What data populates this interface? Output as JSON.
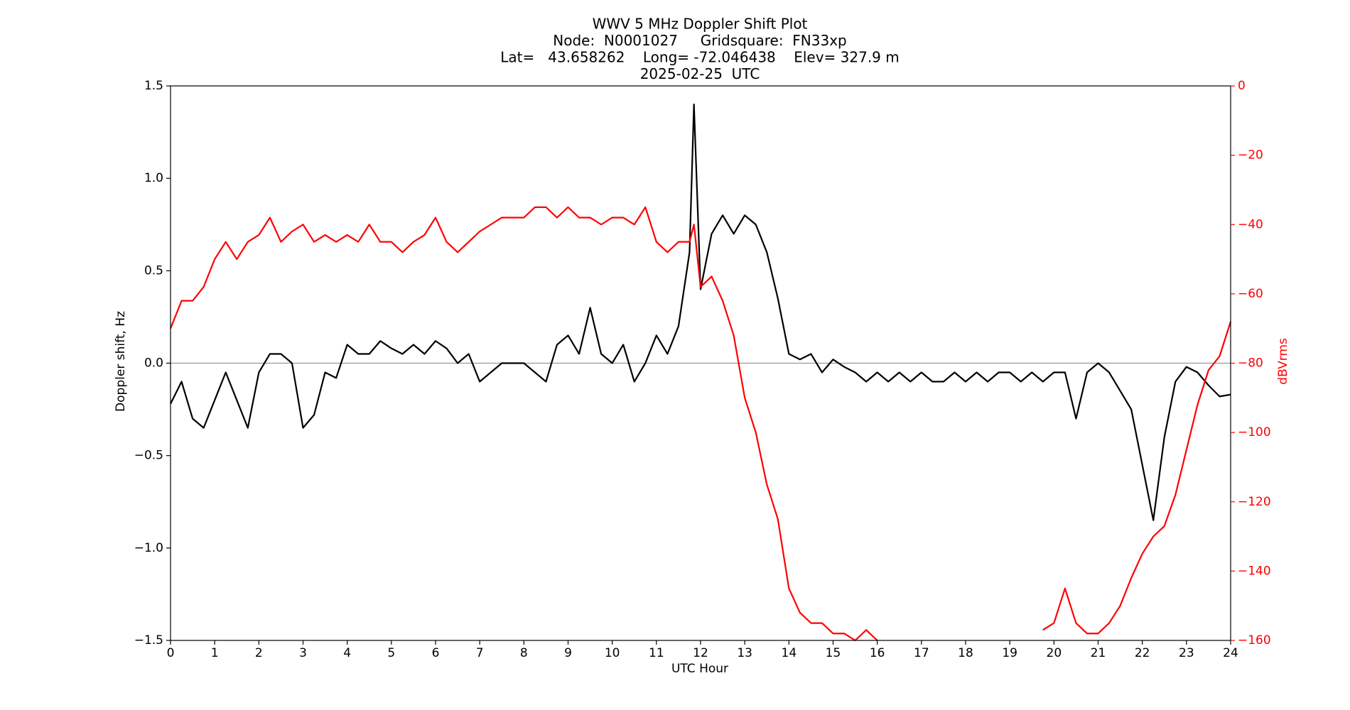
{
  "chart_data": {
    "type": "line",
    "title_lines": [
      "WWV 5 MHz Doppler Shift Plot",
      "Node:  N0001027     Gridsquare:  FN33xp",
      "Lat=   43.658262    Long= -72.046438    Elev= 327.9 m",
      "2025-02-25  UTC"
    ],
    "xlabel": "UTC Hour",
    "ylabel": "Doppler shift, Hz",
    "y2label": "dBVrms",
    "y2color": "#ff0000",
    "x": [
      0,
      0.25,
      0.5,
      0.75,
      1,
      1.25,
      1.5,
      1.75,
      2,
      2.25,
      2.5,
      2.75,
      3,
      3.25,
      3.5,
      3.75,
      4,
      4.25,
      4.5,
      4.75,
      5,
      5.25,
      5.5,
      5.75,
      6,
      6.25,
      6.5,
      6.75,
      7,
      7.25,
      7.5,
      7.75,
      8,
      8.25,
      8.5,
      8.75,
      9,
      9.25,
      9.5,
      9.75,
      10,
      10.25,
      10.5,
      10.75,
      11,
      11.25,
      11.5,
      11.75,
      11.85,
      12,
      12.25,
      12.5,
      12.75,
      13,
      13.25,
      13.5,
      13.75,
      14,
      14.25,
      14.5,
      14.75,
      15,
      15.25,
      15.5,
      15.75,
      16,
      16.25,
      16.5,
      16.75,
      17,
      17.25,
      17.5,
      17.75,
      18,
      18.25,
      18.5,
      18.75,
      19,
      19.25,
      19.5,
      19.75,
      20,
      20.25,
      20.5,
      20.75,
      21,
      21.25,
      21.5,
      21.75,
      22,
      22.25,
      22.5,
      22.75,
      23,
      23.25,
      23.5,
      23.75,
      24
    ],
    "series": [
      {
        "name": "Doppler shift",
        "color": "#000000",
        "axis": "y",
        "values": [
          -0.22,
          -0.1,
          -0.3,
          -0.35,
          -0.2,
          -0.05,
          -0.2,
          -0.35,
          -0.05,
          0.05,
          0.05,
          0.0,
          -0.35,
          -0.28,
          -0.05,
          -0.08,
          0.1,
          0.05,
          0.05,
          0.12,
          0.08,
          0.05,
          0.1,
          0.05,
          0.12,
          0.08,
          0.0,
          0.05,
          -0.1,
          -0.05,
          0.0,
          0.0,
          0.0,
          -0.05,
          -0.1,
          0.1,
          0.15,
          0.05,
          0.3,
          0.05,
          0.0,
          0.1,
          -0.1,
          0.0,
          0.15,
          0.05,
          0.2,
          0.6,
          1.4,
          0.4,
          0.7,
          0.8,
          0.7,
          0.8,
          0.75,
          0.6,
          0.35,
          0.05,
          0.02,
          0.05,
          -0.05,
          0.02,
          -0.02,
          -0.05,
          -0.1,
          -0.05,
          -0.1,
          -0.05,
          -0.1,
          -0.05,
          -0.1,
          -0.1,
          -0.05,
          -0.1,
          -0.05,
          -0.1,
          -0.05,
          -0.05,
          -0.1,
          -0.05,
          -0.1,
          -0.05,
          -0.05,
          -0.3,
          -0.05,
          0.0,
          -0.05,
          -0.15,
          -0.25,
          -0.55,
          -0.85,
          -0.4,
          -0.1,
          -0.02,
          -0.05,
          -0.12,
          -0.18,
          -0.17
        ]
      },
      {
        "name": "dBVrms",
        "color": "#ff0000",
        "axis": "y2",
        "values": [
          -70,
          -62,
          -62,
          -58,
          -50,
          -45,
          -50,
          -45,
          -43,
          -38,
          -45,
          -42,
          -40,
          -45,
          -43,
          -45,
          -43,
          -45,
          -40,
          -45,
          -45,
          -48,
          -45,
          -43,
          -38,
          -45,
          -48,
          -45,
          -42,
          -40,
          -38,
          -38,
          -38,
          -35,
          -35,
          -38,
          -35,
          -38,
          -38,
          -40,
          -38,
          -38,
          -40,
          -35,
          -45,
          -48,
          -45,
          -45,
          -40,
          -58,
          -55,
          -62,
          -72,
          -90,
          -100,
          -115,
          -125,
          -145,
          -152,
          -155,
          -155,
          -158,
          -158,
          -160,
          -157,
          -160,
          null,
          null,
          null,
          null,
          null,
          null,
          null,
          null,
          null,
          null,
          null,
          null,
          null,
          null,
          -157,
          -155,
          -145,
          -155,
          -158,
          -158,
          -155,
          -150,
          -142,
          -135,
          -130,
          -127,
          -118,
          -105,
          -92,
          -82,
          -78,
          -68
        ]
      }
    ],
    "xlim": [
      0,
      24
    ],
    "xticks": [
      0,
      1,
      2,
      3,
      4,
      5,
      6,
      7,
      8,
      9,
      10,
      11,
      12,
      13,
      14,
      15,
      16,
      17,
      18,
      19,
      20,
      21,
      22,
      23,
      24
    ],
    "ylim": [
      -1.5,
      1.5
    ],
    "yticks": [
      {
        "value": -1.5,
        "label": "−1.5"
      },
      {
        "value": -1.0,
        "label": "−1.0"
      },
      {
        "value": -0.5,
        "label": "−0.5"
      },
      {
        "value": 0,
        "label": "0.0"
      },
      0.5,
      {
        "value": 1.0,
        "label": "1.0"
      },
      1.5
    ],
    "y2lim": [
      -160,
      0
    ],
    "y2ticks": [
      {
        "value": -160,
        "label": "−160"
      },
      {
        "value": -140,
        "label": "−140"
      },
      {
        "value": -120,
        "label": "−120"
      },
      {
        "value": -100,
        "label": "−100"
      },
      {
        "value": -80,
        "label": "−80"
      },
      {
        "value": -60,
        "label": "−60"
      },
      {
        "value": -40,
        "label": "−40"
      },
      {
        "value": -20,
        "label": "−20"
      },
      0
    ],
    "reference_line": 0,
    "grid": false
  }
}
